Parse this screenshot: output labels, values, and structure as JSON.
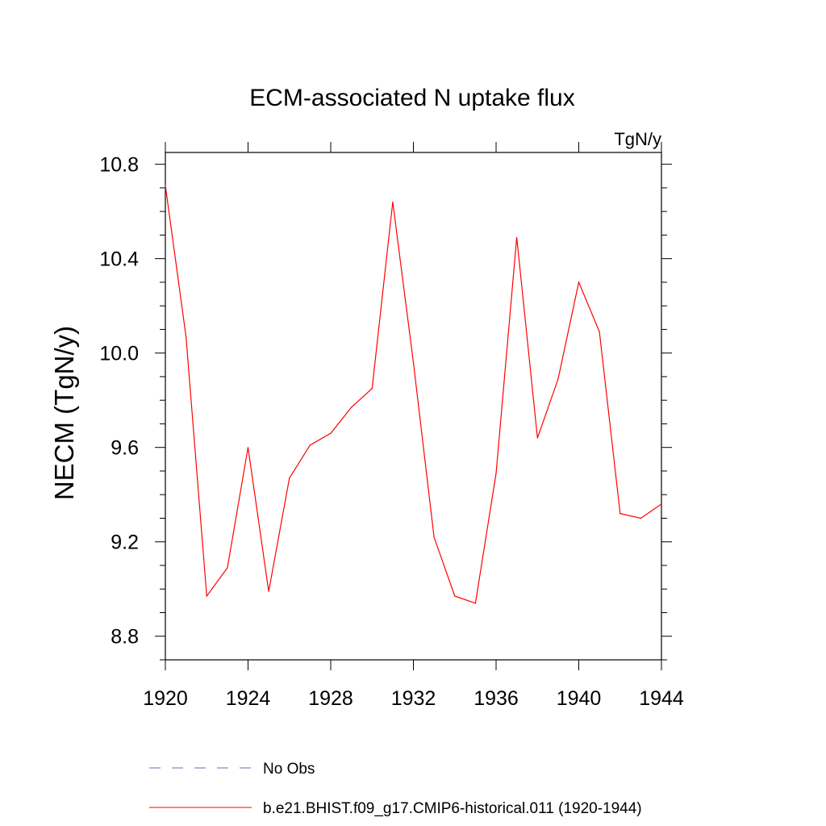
{
  "chart_data": {
    "type": "line",
    "title": "ECM-associated N uptake flux",
    "units": "TgN/y",
    "xlabel": "",
    "ylabel": "NECM  (TgN/y)",
    "xlim": [
      1920,
      1944
    ],
    "ylim": [
      8.7,
      10.85
    ],
    "x_ticks": [
      1920,
      1924,
      1928,
      1932,
      1936,
      1940,
      1944
    ],
    "x_tick_labels": [
      "1920",
      "1924",
      "1928",
      "1932",
      "1936",
      "1940",
      "1944"
    ],
    "y_ticks": [
      8.8,
      9.2,
      9.6,
      10.0,
      10.4,
      10.8
    ],
    "y_tick_labels": [
      "8.8",
      "9.2",
      "9.6",
      "10.0",
      "10.4",
      "10.8"
    ],
    "grid": false,
    "legend_position": "bottom",
    "series": [
      {
        "name": "b.e21.BHIST.f09_g17.CMIP6-historical.011 (1920-1944)",
        "color": "#ff0000",
        "style": "solid",
        "x": [
          1920,
          1921,
          1922,
          1923,
          1924,
          1925,
          1926,
          1927,
          1928,
          1929,
          1930,
          1931,
          1932,
          1933,
          1934,
          1935,
          1936,
          1937,
          1938,
          1939,
          1940,
          1941,
          1942,
          1943,
          1944
        ],
        "y": [
          10.71,
          10.07,
          8.97,
          9.09,
          9.6,
          8.99,
          9.47,
          9.61,
          9.66,
          9.77,
          9.85,
          10.64,
          9.96,
          9.22,
          8.97,
          8.94,
          9.49,
          10.49,
          9.64,
          9.89,
          10.3,
          10.09,
          9.32,
          9.3,
          9.36
        ]
      }
    ],
    "legend": [
      {
        "label": "No Obs",
        "color": "#6b6bb5",
        "style": "dashed"
      },
      {
        "label": "b.e21.BHIST.f09_g17.CMIP6-historical.011 (1920-1944)",
        "color": "#ff0000",
        "style": "solid"
      }
    ]
  }
}
